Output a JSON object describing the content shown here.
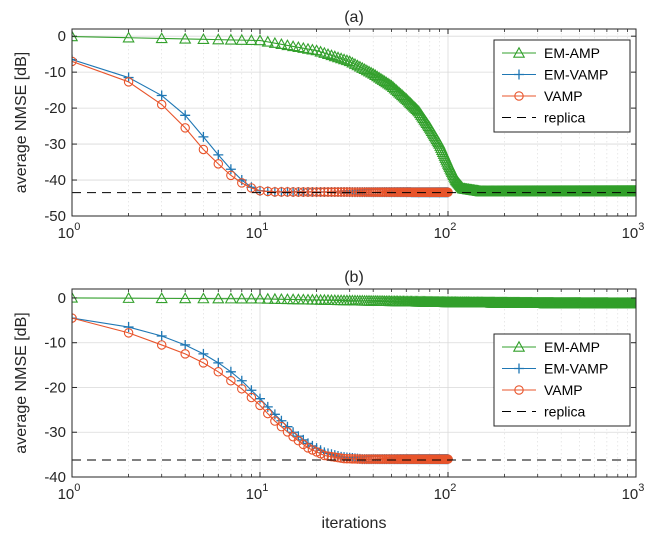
{
  "figure": {
    "xlabel": "iterations",
    "colors": {
      "em_amp": "#33a02c",
      "em_vamp": "#1f77b4",
      "vamp": "#e8542b",
      "replica": "#000000",
      "axes": "#262626",
      "grid": "#d9d9d9"
    }
  },
  "chart_data": [
    {
      "type": "line",
      "title": "(a)",
      "xlabel": "",
      "ylabel": "average NMSE [dB]",
      "xscale": "log",
      "xlim": [
        1,
        1000
      ],
      "ylim": [
        -50,
        2
      ],
      "xticks": [
        1,
        10,
        100,
        1000
      ],
      "xtick_labels": [
        {
          "base": "10",
          "exp": "0"
        },
        {
          "base": "10",
          "exp": "1"
        },
        {
          "base": "10",
          "exp": "2"
        },
        {
          "base": "10",
          "exp": "3"
        }
      ],
      "yticks": [
        0,
        -10,
        -20,
        -30,
        -40,
        -50
      ],
      "ytick_labels": [
        "0",
        "-10",
        "-20",
        "-30",
        "-40",
        "-50"
      ],
      "grid": true,
      "legend_position": "top-right",
      "series": [
        {
          "name": "EM-AMP",
          "color": "#33a02c",
          "marker": "triangle",
          "x_max": 1000,
          "points": [
            [
              1,
              -0.1
            ],
            [
              10,
              -1.2
            ],
            [
              20,
              -4
            ],
            [
              30,
              -7
            ],
            [
              40,
              -10.5
            ],
            [
              50,
              -13.8
            ],
            [
              60,
              -17.5
            ],
            [
              70,
              -21
            ],
            [
              80,
              -25.5
            ],
            [
              90,
              -30
            ],
            [
              100,
              -35.5
            ],
            [
              110,
              -40
            ],
            [
              120,
              -42.4
            ],
            [
              150,
              -43.2
            ],
            [
              1000,
              -43.2
            ]
          ]
        },
        {
          "name": "EM-VAMP",
          "color": "#1f77b4",
          "marker": "plus",
          "x_max": 100,
          "points": [
            [
              1,
              -6.5
            ],
            [
              2,
              -11.5
            ],
            [
              3,
              -16.5
            ],
            [
              4,
              -22
            ],
            [
              5,
              -28
            ],
            [
              6,
              -33
            ],
            [
              7,
              -37
            ],
            [
              8,
              -40
            ],
            [
              9,
              -42
            ],
            [
              10,
              -43
            ],
            [
              12,
              -43.3
            ],
            [
              100,
              -43.4
            ]
          ]
        },
        {
          "name": "VAMP",
          "color": "#e8542b",
          "marker": "circle",
          "x_max": 100,
          "points": [
            [
              1,
              -7
            ],
            [
              2,
              -12.7
            ],
            [
              3,
              -19
            ],
            [
              4,
              -25.5
            ],
            [
              5,
              -31.5
            ],
            [
              6,
              -35.5
            ],
            [
              7,
              -38.7
            ],
            [
              8,
              -40.8
            ],
            [
              9,
              -42.2
            ],
            [
              10,
              -43
            ],
            [
              12,
              -43.3
            ],
            [
              100,
              -43.4
            ]
          ]
        },
        {
          "name": "replica",
          "color": "#000000",
          "style": "dashed",
          "points": [
            [
              1,
              -43.5
            ],
            [
              1000,
              -43.5
            ]
          ]
        }
      ]
    },
    {
      "type": "line",
      "title": "(b)",
      "xlabel": "iterations",
      "ylabel": "average NMSE [dB]",
      "xscale": "log",
      "xlim": [
        1,
        1000
      ],
      "ylim": [
        -40,
        2
      ],
      "xticks": [
        1,
        10,
        100,
        1000
      ],
      "xtick_labels": [
        {
          "base": "10",
          "exp": "0"
        },
        {
          "base": "10",
          "exp": "1"
        },
        {
          "base": "10",
          "exp": "2"
        },
        {
          "base": "10",
          "exp": "3"
        }
      ],
      "yticks": [
        0,
        -10,
        -20,
        -30,
        -40
      ],
      "ytick_labels": [
        "0",
        "-10",
        "-20",
        "-30",
        "-40"
      ],
      "grid": true,
      "legend_position": "center-right",
      "series": [
        {
          "name": "EM-AMP",
          "color": "#33a02c",
          "marker": "triangle",
          "x_max": 1000,
          "points": [
            [
              1,
              0
            ],
            [
              10,
              -0.2
            ],
            [
              30,
              -0.6
            ],
            [
              100,
              -1.0
            ],
            [
              300,
              -1.2
            ],
            [
              1000,
              -1.3
            ]
          ]
        },
        {
          "name": "EM-VAMP",
          "color": "#1f77b4",
          "marker": "plus",
          "x_max": 100,
          "points": [
            [
              1,
              -4.5
            ],
            [
              2,
              -6.5
            ],
            [
              3,
              -8.5
            ],
            [
              4,
              -10.5
            ],
            [
              5,
              -12.5
            ],
            [
              6,
              -14.5
            ],
            [
              7,
              -16.5
            ],
            [
              8,
              -18.5
            ],
            [
              10,
              -22.5
            ],
            [
              12,
              -26
            ],
            [
              15,
              -30
            ],
            [
              18,
              -32.5
            ],
            [
              22,
              -34.5
            ],
            [
              27,
              -35.5
            ],
            [
              35,
              -36
            ],
            [
              100,
              -36
            ]
          ]
        },
        {
          "name": "VAMP",
          "color": "#e8542b",
          "marker": "circle",
          "x_max": 100,
          "points": [
            [
              1,
              -4.5
            ],
            [
              2,
              -7.8
            ],
            [
              3,
              -10.5
            ],
            [
              4,
              -12.5
            ],
            [
              5,
              -14.5
            ],
            [
              6,
              -16.5
            ],
            [
              7,
              -18.5
            ],
            [
              8,
              -20.3
            ],
            [
              10,
              -24
            ],
            [
              12,
              -27.5
            ],
            [
              15,
              -31
            ],
            [
              18,
              -33.5
            ],
            [
              22,
              -35.2
            ],
            [
              28,
              -35.9
            ],
            [
              35,
              -36
            ],
            [
              100,
              -36
            ]
          ]
        },
        {
          "name": "replica",
          "color": "#000000",
          "style": "dashed",
          "points": [
            [
              1,
              -36.2
            ],
            [
              1000,
              -36.2
            ]
          ]
        }
      ]
    }
  ]
}
